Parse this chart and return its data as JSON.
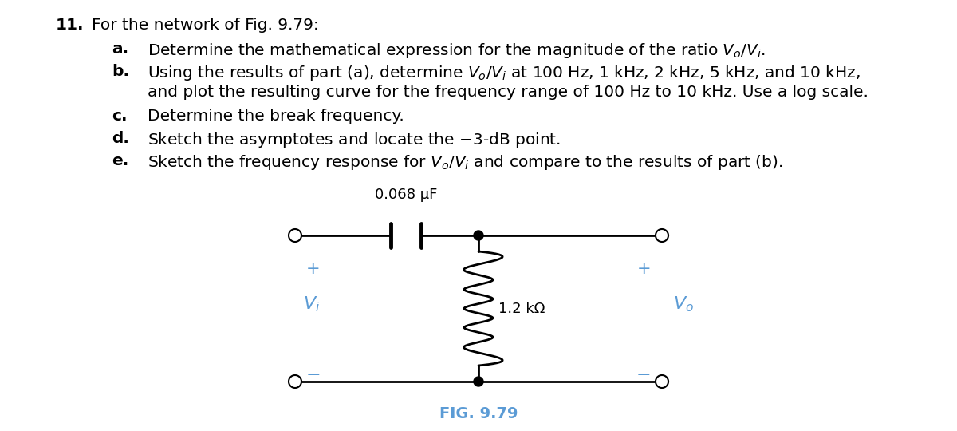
{
  "background_color": "#ffffff",
  "text_color": "#000000",
  "blue_color": "#5b9bd5",
  "capacitor_label": "0.068 μF",
  "resistor_label": "1.2 kΩ",
  "fig_label": "FIG. 9.79"
}
